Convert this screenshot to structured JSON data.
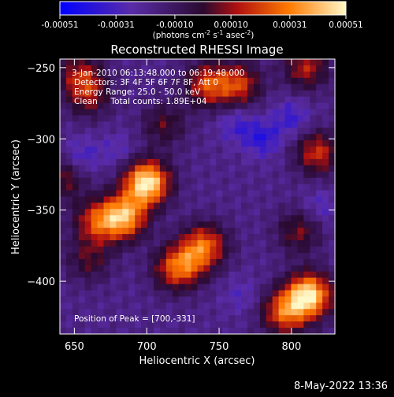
{
  "colorbar": {
    "ticks": [
      "-0.00051",
      "-0.00031",
      "-0.00010",
      "0.00010",
      "0.00031",
      "0.00051"
    ],
    "tick_values": [
      -0.00051,
      -0.00031,
      -0.0001,
      0.0001,
      0.00031,
      0.00051
    ],
    "range": [
      -0.00051,
      0.00051
    ],
    "unit_main": "(photons cm",
    "unit_exp1": "-2",
    "unit_mid": " s",
    "unit_exp2": "-1",
    "unit_mid2": " asec",
    "unit_exp3": "-2",
    "unit_end": ")",
    "colors": [
      "#0000ff",
      "#5a2ca8",
      "#2a0a30",
      "#b01010",
      "#ff7a00",
      "#fff8c8"
    ]
  },
  "chart_data": {
    "type": "heatmap",
    "title": "Reconstructed RHESSI Image",
    "xlabel": "Heliocentric X (arcsec)",
    "ylabel": "Heliocentric Y (arcsec)",
    "xlim": [
      640,
      830
    ],
    "ylim": [
      -437,
      -244
    ],
    "xticks": [
      650,
      700,
      750,
      800
    ],
    "yticks": [
      -250,
      -300,
      -350,
      -400
    ],
    "annotations": [
      "3-Jan-2010 06:13:48.000 to 06:19:48.000",
      "Detectors: 3F 4F 5F 6F 7F 8F, Att 0",
      "Energy Range: 25.0 - 50.0 keV",
      "Clean     Total counts: 1.89E+04",
      "Position of Peak = [700,-331]"
    ],
    "peak": [
      700,
      -331
    ],
    "sources": [
      {
        "x": 700,
        "y": -331,
        "intensity": 1.0
      },
      {
        "x": 684,
        "y": -355,
        "intensity": 0.8
      },
      {
        "x": 665,
        "y": -358,
        "intensity": 0.5
      },
      {
        "x": 812,
        "y": -410,
        "intensity": 0.95
      },
      {
        "x": 795,
        "y": -422,
        "intensity": 0.6
      },
      {
        "x": 742,
        "y": -262,
        "intensity": 0.55
      },
      {
        "x": 764,
        "y": -262,
        "intensity": 0.5
      },
      {
        "x": 660,
        "y": -270,
        "intensity": 0.35
      },
      {
        "x": 712,
        "y": -290,
        "intensity": 0.3
      },
      {
        "x": 740,
        "y": -375,
        "intensity": 0.6
      },
      {
        "x": 727,
        "y": -388,
        "intensity": 0.4
      },
      {
        "x": 660,
        "y": -385,
        "intensity": 0.3
      },
      {
        "x": 718,
        "y": -392,
        "intensity": 0.35
      },
      {
        "x": 818,
        "y": -310,
        "intensity": 0.5
      },
      {
        "x": 805,
        "y": -365,
        "intensity": 0.35
      },
      {
        "x": 810,
        "y": -250,
        "intensity": 0.45
      },
      {
        "x": 654,
        "y": -255,
        "intensity": 0.4
      },
      {
        "x": 642,
        "y": -328,
        "intensity": 0.35
      }
    ],
    "negative_sources": [
      {
        "x": 780,
        "y": -300,
        "intensity": 0.6
      },
      {
        "x": 800,
        "y": -285,
        "intensity": 0.5
      },
      {
        "x": 762,
        "y": -290,
        "intensity": 0.45
      },
      {
        "x": 655,
        "y": -312,
        "intensity": 0.45
      },
      {
        "x": 765,
        "y": -410,
        "intensity": 0.3
      },
      {
        "x": 820,
        "y": -348,
        "intensity": 0.35
      },
      {
        "x": 680,
        "y": -308,
        "intensity": 0.3
      }
    ]
  },
  "footer": {
    "timestamp": "8-May-2022 13:36"
  }
}
